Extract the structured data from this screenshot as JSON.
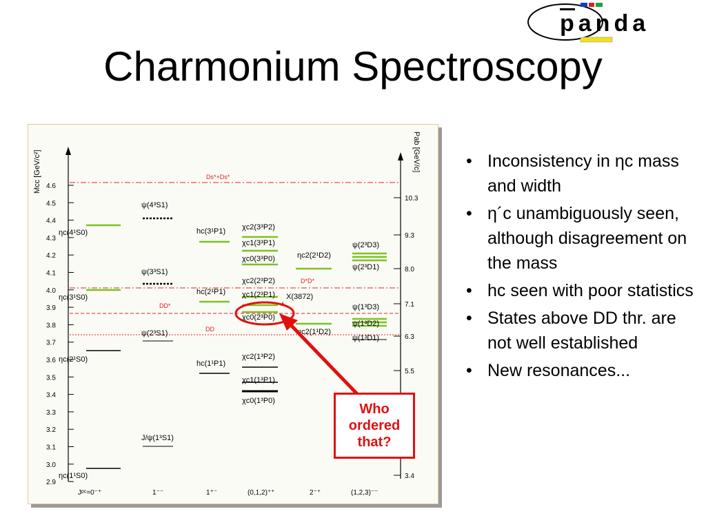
{
  "slide": {
    "title": "Charmonium Spectroscopy",
    "logo_text": "panda",
    "callout": "Who ordered that?",
    "bullets": [
      "Inconsistency in ηc mass and width",
      "η´c unambiguously seen, although disagreement on the mass",
      "hc seen with poor statistics",
      "States above DD thr. are not well established",
      "New resonances..."
    ]
  },
  "figure": {
    "left_axis_label": "Mcc [GeV/c²]",
    "right_axis_label": "Pab [GeV/c]",
    "left_ticks": [
      "4.6",
      "4.5",
      "4.4",
      "4.3",
      "4.2",
      "4.1",
      "4.0",
      "3.9",
      "3.8",
      "3.7",
      "3.6",
      "3.5",
      "3.4",
      "3.3",
      "3.2",
      "3.1",
      "3.0",
      "2.9"
    ],
    "right_ticks": [
      "10.3",
      "9.3",
      "8.0",
      "7.1",
      "6.3",
      "5.5",
      "3.4"
    ],
    "columns": [
      "Jᵖᶜ=0⁻⁺",
      "1⁻⁻",
      "1⁺⁻",
      "(0,1,2)⁺⁺",
      "2⁻⁺",
      "(1,2,3)⁻⁻"
    ],
    "thresholds": [
      "Ds*+Ds*",
      "D*D*",
      "DD*",
      "DD"
    ],
    "state_labels": [
      "ηc(4¹S0)",
      "ηc(3¹S0)",
      "ηc(2¹S0)",
      "ηc(1¹S0)",
      "ψ(4³S1)",
      "ψ(3³S1)",
      "ψ(2³S1)",
      "J/ψ(1³S1)",
      "hc(3¹P1)",
      "hc(2¹P1)",
      "hc(1¹P1)",
      "χc2(3³P2)",
      "χc1(3³P1)",
      "χc0(3³P0)",
      "χc2(2³P2)",
      "χc1(2³P1)",
      "χc0(2³P0)",
      "X(3872)",
      "χc2(1³P2)",
      "χc1(1³P1)",
      "χc0(1³P0)",
      "ηc2(2¹D2)",
      "ηc2(1¹D2)",
      "ψ(2³D3)",
      "ψ(2³D1)",
      "ψ(1³D3)",
      "ψ(1³D2)",
      "ψ(1³D1)"
    ]
  },
  "colors": {
    "accent_red": "#e01010",
    "level_green": "#7ac31e",
    "threshold_red": "#e02020",
    "logo_blue": "#1040c0",
    "logo_yellow": "#f2e020"
  }
}
